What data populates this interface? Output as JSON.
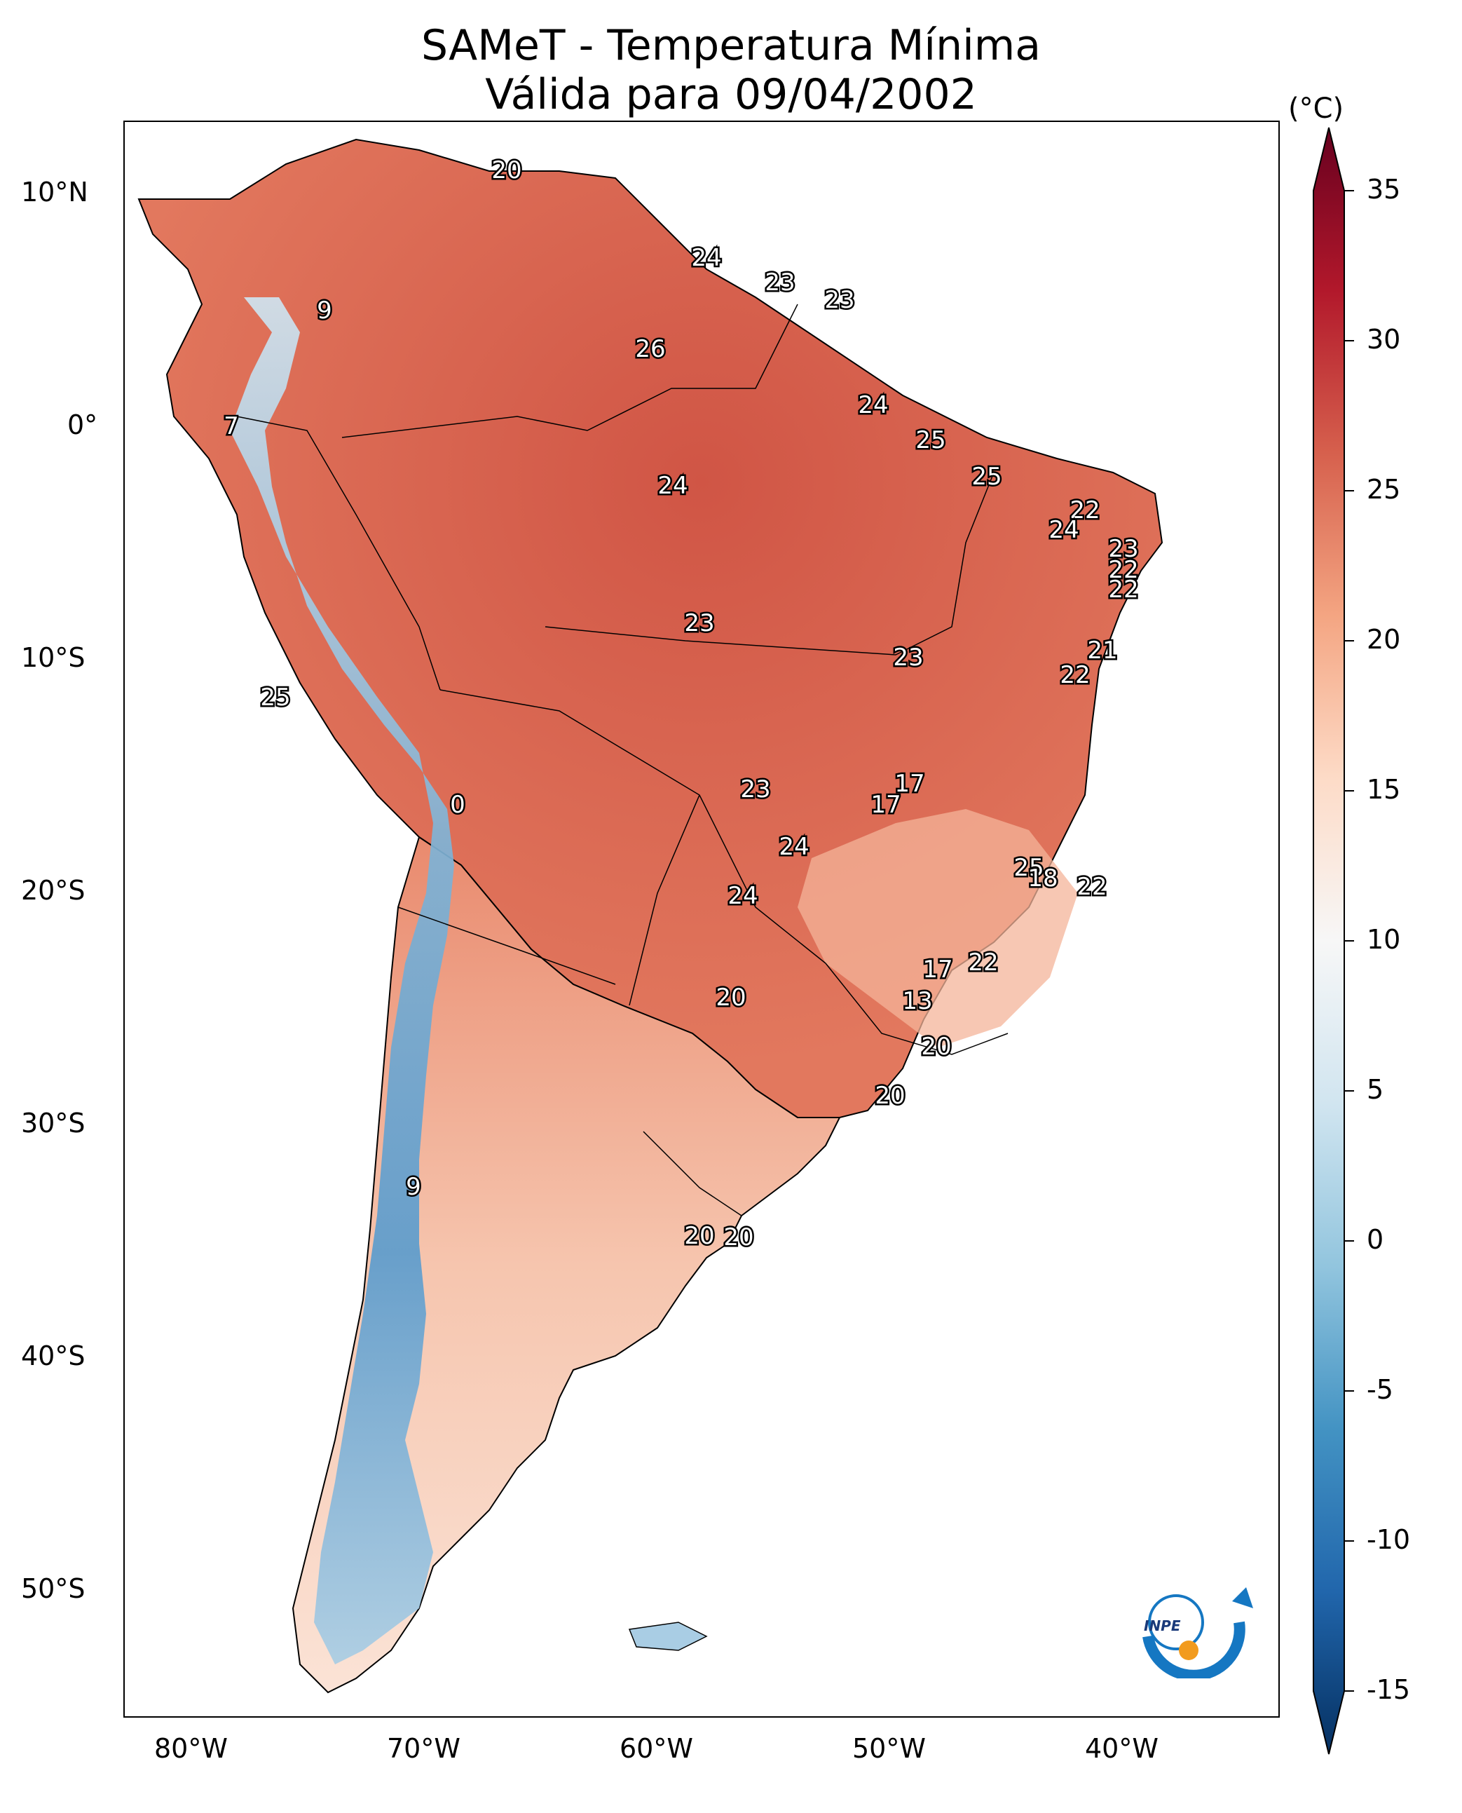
{
  "title": {
    "line1": "SAMeT - Temperatura Mínima",
    "line2": "Válida para 09/04/2002"
  },
  "colorbar": {
    "unit": "(°C)",
    "ticks": [
      "35",
      "30",
      "25",
      "20",
      "15",
      "10",
      "5",
      "0",
      "-5",
      "-10",
      "-15"
    ],
    "range": [
      -15,
      35
    ],
    "colors": [
      "#053061",
      "#2166ac",
      "#4393c3",
      "#92c5de",
      "#d1e5f0",
      "#f7f7f7",
      "#fddbc7",
      "#f4a582",
      "#d6604d",
      "#b2182b",
      "#67001f"
    ]
  },
  "axes": {
    "lat_labels": [
      "10°N",
      "0°",
      "10°S",
      "20°S",
      "30°S",
      "40°S",
      "50°S"
    ],
    "lon_labels": [
      "80°W",
      "70°W",
      "60°W",
      "50°W",
      "40°W"
    ]
  },
  "map_labels": [
    "20",
    "24",
    "23",
    "23",
    "9",
    "26",
    "7",
    "24",
    "25",
    "24",
    "25",
    "22",
    "24",
    "23",
    "22",
    "22",
    "25",
    "24",
    "23",
    "21",
    "22",
    "23",
    "25",
    "0",
    "23",
    "17",
    "17",
    "18",
    "24",
    "22",
    "22",
    "17",
    "20",
    "13",
    "20",
    "20",
    "9",
    "20",
    "20"
  ],
  "logo_text": "INPE"
}
